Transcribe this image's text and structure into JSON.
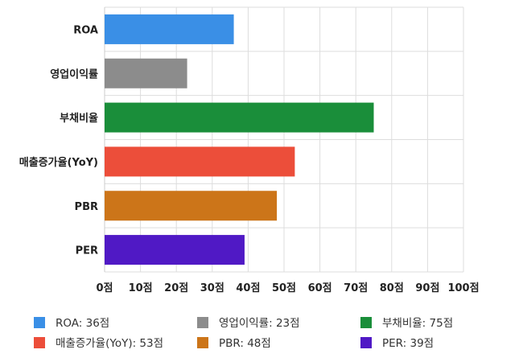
{
  "chart_data": {
    "type": "bar",
    "orientation": "horizontal",
    "categories": [
      "ROA",
      "영업이익률",
      "부채비율",
      "매출증가율(YoY)",
      "PBR",
      "PER"
    ],
    "values": [
      36,
      23,
      75,
      53,
      48,
      39
    ],
    "colors": [
      "#3a8fe6",
      "#8c8c8c",
      "#1a8e3a",
      "#ec4e3a",
      "#cc7519",
      "#5019c5"
    ],
    "unit": "점",
    "xlim": [
      0,
      100
    ],
    "x_ticks": [
      0,
      10,
      20,
      30,
      40,
      50,
      60,
      70,
      80,
      90,
      100
    ],
    "x_tick_labels": [
      "0점",
      "10점",
      "20점",
      "30점",
      "40점",
      "50점",
      "60점",
      "70점",
      "80점",
      "90점",
      "100점"
    ],
    "grid": true,
    "legend_position": "bottom",
    "legend": [
      "ROA: 36점",
      "영업이익률: 23점",
      "부채비율: 75점",
      "매출증가율(YoY): 53점",
      "PBR: 48점",
      "PER: 39점"
    ]
  }
}
